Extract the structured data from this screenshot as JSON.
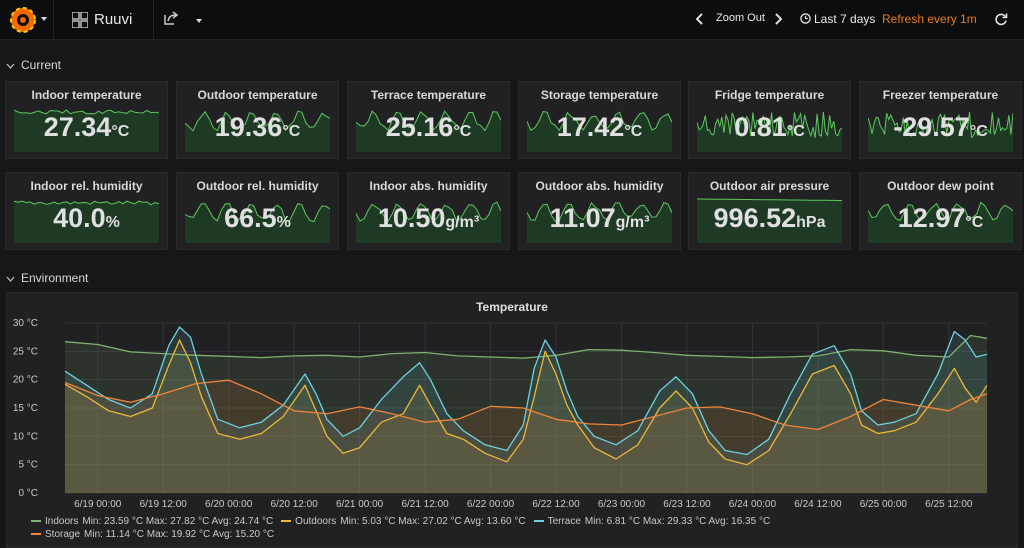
{
  "navbar": {
    "dashboard_title": "Ruuvi",
    "zoom_out_label": "Zoom Out",
    "time_range_label": "Last 7 days",
    "refresh_label": "Refresh every 1m"
  },
  "rows": {
    "current": "Current",
    "environment": "Environment"
  },
  "colors": {
    "indoors": "#7eb26d",
    "outdoors": "#eab839",
    "terrace": "#6ed0e0",
    "storage": "#ef843c",
    "stat_fill": "#1e3a24",
    "stat_line": "#5ec75e",
    "refresh": "#eb7b18"
  },
  "stat_panels": [
    {
      "title": "Indoor temperature",
      "value": "27.34",
      "unit": "°C"
    },
    {
      "title": "Outdoor temperature",
      "value": "19.36",
      "unit": "°C"
    },
    {
      "title": "Terrace temperature",
      "value": "25.16",
      "unit": "°C"
    },
    {
      "title": "Storage temperature",
      "value": "17.42",
      "unit": "°C"
    },
    {
      "title": "Fridge temperature",
      "value": "0.81",
      "unit": "°C"
    },
    {
      "title": "Freezer temperature",
      "value": "-29.57",
      "unit": "°C"
    },
    {
      "title": "Indoor rel. humidity",
      "value": "40.0",
      "unit": "%"
    },
    {
      "title": "Outdoor rel. humidity",
      "value": "66.5",
      "unit": "%"
    },
    {
      "title": "Indoor abs. humidity",
      "value": "10.50",
      "unit": "g/m³"
    },
    {
      "title": "Outdoor abs. humidity",
      "value": "11.07",
      "unit": "g/m³"
    },
    {
      "title": "Outdoor air pressure",
      "value": "996.52",
      "unit": "hPa"
    },
    {
      "title": "Outdoor dew point",
      "value": "12.97",
      "unit": "°C"
    }
  ],
  "chart_data": {
    "type": "line",
    "title": "Temperature",
    "ylim": [
      0,
      30
    ],
    "y_ticks": [
      "0 °C",
      "5 °C",
      "10 °C",
      "15 °C",
      "20 °C",
      "25 °C",
      "30 °C"
    ],
    "x_ticks": [
      "6/19 00:00",
      "6/19 12:00",
      "6/20 00:00",
      "6/20 12:00",
      "6/21 00:00",
      "6/21 12:00",
      "6/22 00:00",
      "6/22 12:00",
      "6/23 00:00",
      "6/23 12:00",
      "6/24 00:00",
      "6/24 12:00",
      "6/25 00:00",
      "6/25 12:00"
    ],
    "x_hours": [
      0,
      12,
      24,
      36,
      48,
      60,
      72,
      84,
      96,
      108,
      120,
      132,
      144,
      156
    ],
    "xlim": [
      -6,
      163
    ],
    "grid": true,
    "legend_position": "bottom",
    "series": [
      {
        "name": "Indoors",
        "stats": "Min: 23.59 °C  Max: 27.82 °C  Avg: 24.74 °C",
        "x": [
          -6,
          0,
          6,
          12,
          18,
          24,
          30,
          36,
          42,
          48,
          54,
          60,
          66,
          72,
          78,
          84,
          90,
          96,
          102,
          108,
          114,
          120,
          126,
          132,
          138,
          144,
          150,
          156,
          160,
          163
        ],
        "values": [
          26.7,
          26.2,
          24.9,
          24.6,
          24.3,
          24.1,
          23.9,
          24.2,
          24.3,
          24.0,
          24.6,
          24.8,
          24.2,
          24.0,
          23.8,
          24.3,
          25.3,
          25.2,
          24.8,
          24.3,
          24.1,
          23.9,
          24.0,
          24.2,
          25.3,
          25.1,
          24.3,
          24.0,
          27.8,
          27.3
        ]
      },
      {
        "name": "Outdoors",
        "stats": "Min: 5.03 °C  Max: 27.02 °C  Avg: 13.60 °C",
        "x": [
          -6,
          -2,
          2,
          6,
          10,
          13,
          15,
          17,
          19,
          22,
          26,
          30,
          34,
          38,
          40,
          42,
          45,
          48,
          52,
          56,
          59,
          61,
          64,
          67,
          71,
          75,
          78,
          80,
          82,
          84,
          86,
          88,
          91,
          95,
          99,
          103,
          106,
          109,
          112,
          115,
          119,
          123,
          127,
          131,
          135,
          138,
          140,
          143,
          146,
          150,
          154,
          157,
          159,
          161,
          163
        ],
        "values": [
          19.2,
          17.0,
          14.5,
          13.5,
          15.0,
          22.5,
          27.0,
          23.0,
          17.0,
          10.5,
          9.5,
          10.5,
          13.5,
          19.0,
          14.5,
          10.0,
          7.0,
          8.0,
          12.5,
          14.0,
          19.0,
          15.5,
          10.5,
          9.5,
          7.0,
          5.5,
          9.5,
          17.0,
          25.0,
          21.0,
          15.5,
          12.0,
          8.0,
          6.0,
          8.5,
          15.0,
          18.0,
          15.0,
          9.0,
          6.0,
          5.0,
          7.5,
          14.0,
          21.0,
          22.5,
          17.5,
          12.0,
          10.5,
          11.0,
          12.5,
          17.5,
          22.0,
          18.5,
          16.0,
          19.0
        ]
      },
      {
        "name": "Terrace",
        "stats": "Min: 6.81 °C  Max: 29.33 °C  Avg: 16.35 °C",
        "x": [
          -6,
          -2,
          2,
          6,
          10,
          13,
          15,
          17,
          19,
          22,
          26,
          30,
          34,
          38,
          40,
          42,
          45,
          48,
          52,
          56,
          59,
          61,
          64,
          67,
          71,
          75,
          78,
          80,
          82,
          84,
          86,
          88,
          91,
          95,
          99,
          103,
          106,
          109,
          112,
          115,
          119,
          123,
          127,
          131,
          135,
          138,
          140,
          143,
          146,
          150,
          154,
          157,
          159,
          161,
          163
        ],
        "values": [
          21.5,
          19.0,
          16.5,
          15.0,
          17.5,
          26.0,
          29.3,
          27.5,
          21.0,
          13.0,
          11.5,
          12.5,
          15.5,
          21.0,
          17.5,
          13.0,
          10.0,
          11.5,
          16.5,
          20.5,
          23.0,
          20.0,
          14.0,
          11.0,
          8.5,
          7.5,
          12.0,
          22.0,
          27.0,
          24.0,
          18.0,
          13.5,
          10.0,
          8.5,
          11.0,
          18.0,
          20.5,
          17.5,
          11.0,
          7.5,
          6.8,
          9.5,
          17.5,
          24.5,
          26.0,
          21.0,
          14.5,
          12.0,
          12.5,
          14.0,
          21.0,
          28.5,
          27.0,
          24.0,
          24.5
        ]
      },
      {
        "name": "Storage",
        "stats": "Min: 11.14 °C  Max: 19.92 °C  Avg: 15.20 °C",
        "x": [
          -6,
          0,
          6,
          12,
          18,
          24,
          30,
          36,
          42,
          48,
          54,
          60,
          66,
          72,
          78,
          84,
          90,
          96,
          102,
          108,
          114,
          120,
          126,
          132,
          138,
          144,
          150,
          156,
          160,
          163
        ],
        "values": [
          19.5,
          17.2,
          16.0,
          17.5,
          19.3,
          19.9,
          17.5,
          14.5,
          14.0,
          15.2,
          14.0,
          12.5,
          13.0,
          15.3,
          15.0,
          13.0,
          12.2,
          12.0,
          13.5,
          15.0,
          15.2,
          14.0,
          12.0,
          11.2,
          13.5,
          16.5,
          15.5,
          14.5,
          16.5,
          17.5
        ]
      }
    ]
  }
}
